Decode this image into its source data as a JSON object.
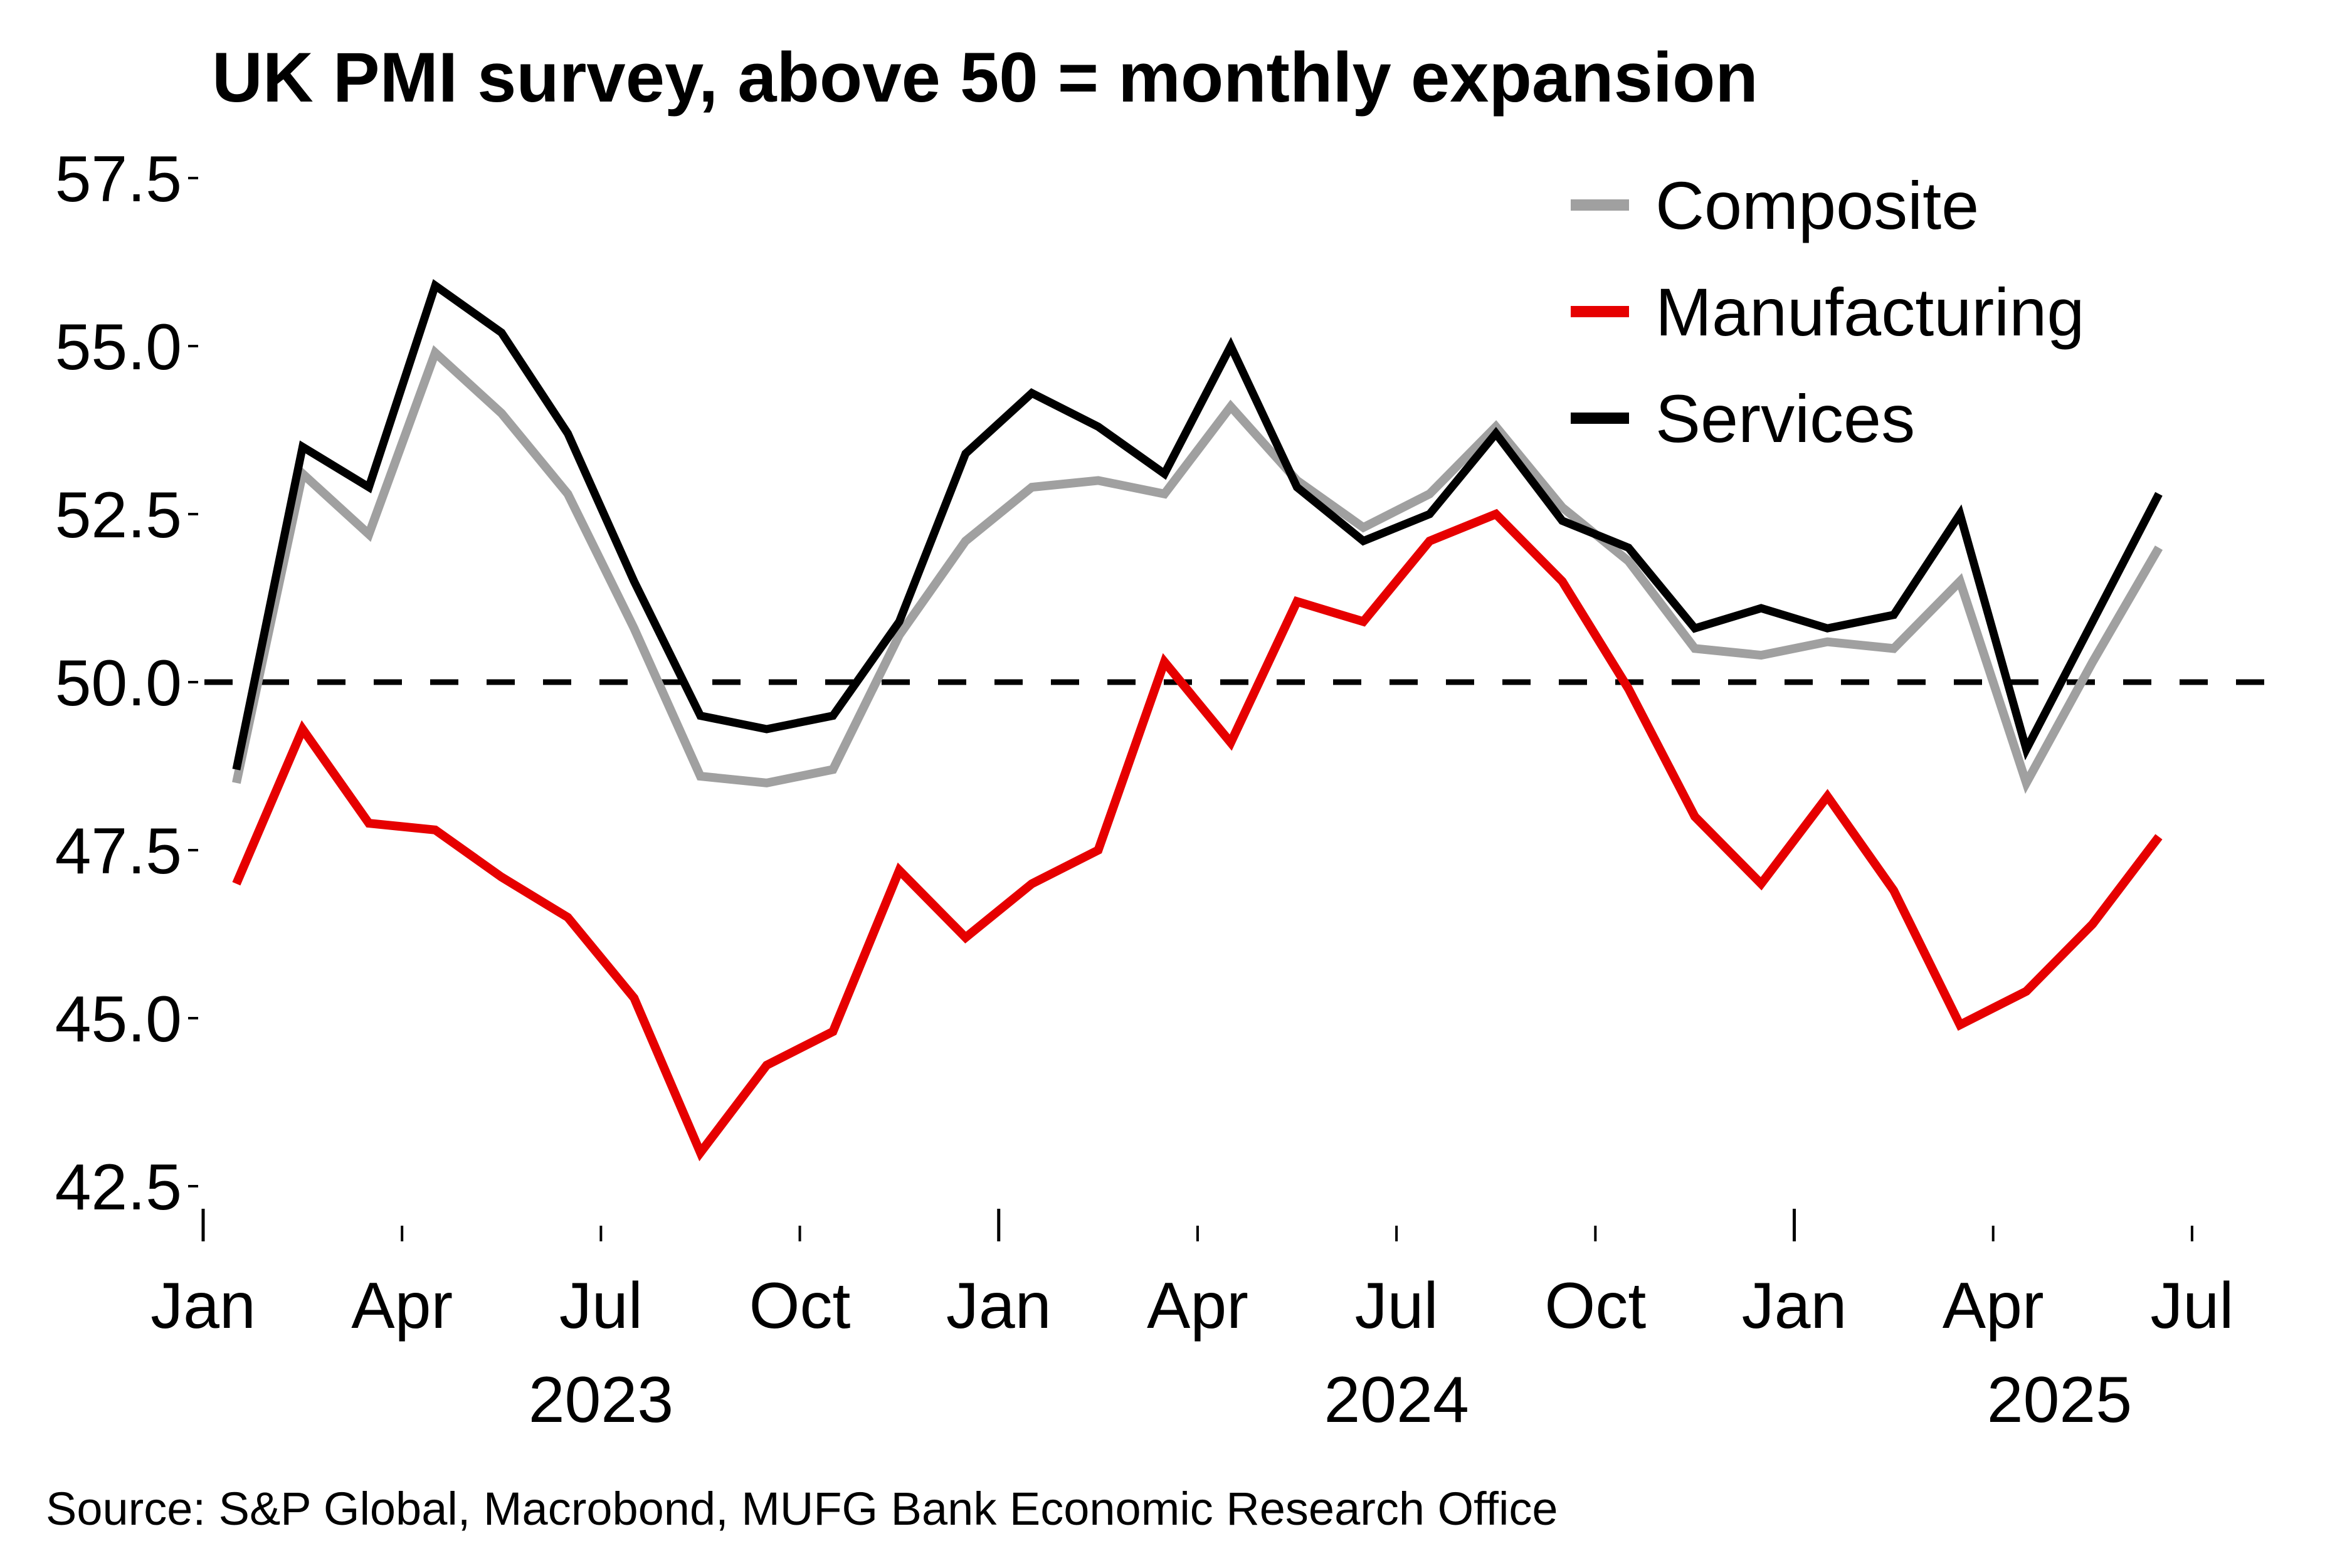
{
  "chart_data": {
    "type": "line",
    "title": "UK PMI survey, above 50 = monthly expansion",
    "xlabel": "",
    "ylabel": "",
    "ylim": [
      42.5,
      57.5
    ],
    "yticks": [
      "57.5",
      "55.0",
      "52.5",
      "50.0",
      "47.5",
      "45.0",
      "42.5"
    ],
    "ytick_values": [
      57.5,
      55.0,
      52.5,
      50.0,
      47.5,
      45.0,
      42.5
    ],
    "x_start": "2023-01",
    "x_end_tick": "2025-07",
    "x": [
      "2023-01",
      "2023-02",
      "2023-03",
      "2023-04",
      "2023-05",
      "2023-06",
      "2023-07",
      "2023-08",
      "2023-09",
      "2023-10",
      "2023-11",
      "2023-12",
      "2024-01",
      "2024-02",
      "2024-03",
      "2024-04",
      "2024-05",
      "2024-06",
      "2024-07",
      "2024-08",
      "2024-09",
      "2024-10",
      "2024-11",
      "2024-12",
      "2025-01",
      "2025-02",
      "2025-03",
      "2025-04",
      "2025-05",
      "2025-06"
    ],
    "xtick_labels": [
      {
        "label": "Jan",
        "month_index": 0,
        "major": true
      },
      {
        "label": "Apr",
        "month_index": 3,
        "major": false
      },
      {
        "label": "Jul",
        "month_index": 6,
        "major": false
      },
      {
        "label": "Oct",
        "month_index": 9,
        "major": false
      },
      {
        "label": "Jan",
        "month_index": 12,
        "major": true
      },
      {
        "label": "Apr",
        "month_index": 15,
        "major": false
      },
      {
        "label": "Jul",
        "month_index": 18,
        "major": false
      },
      {
        "label": "Oct",
        "month_index": 21,
        "major": false
      },
      {
        "label": "Jan",
        "month_index": 24,
        "major": true
      },
      {
        "label": "Apr",
        "month_index": 27,
        "major": false
      },
      {
        "label": "Jul",
        "month_index": 30,
        "major": false
      }
    ],
    "year_labels": [
      {
        "label": "2023",
        "month_center": 6
      },
      {
        "label": "2024",
        "month_center": 18
      },
      {
        "label": "2025",
        "month_center": 28
      }
    ],
    "reference_line": {
      "value": 50.0,
      "style": "dashed",
      "color": "#000000"
    },
    "grid": false,
    "legend": {
      "placement": "top-right"
    },
    "series": [
      {
        "name": "Composite",
        "color": "#A0A0A0",
        "values": [
          48.5,
          53.1,
          52.2,
          54.9,
          54.0,
          52.8,
          50.8,
          48.6,
          48.5,
          48.7,
          50.7,
          52.1,
          52.9,
          53.0,
          52.8,
          54.1,
          53.0,
          52.3,
          52.8,
          53.8,
          52.6,
          51.8,
          50.5,
          50.4,
          50.6,
          50.5,
          51.5,
          48.5,
          50.3,
          52.0
        ]
      },
      {
        "name": "Manufacturing",
        "color": "#E60000",
        "values": [
          47.0,
          49.3,
          47.9,
          47.8,
          47.1,
          46.5,
          45.3,
          43.0,
          44.3,
          44.8,
          47.2,
          46.2,
          47.0,
          47.5,
          50.3,
          49.1,
          51.2,
          50.9,
          52.1,
          52.5,
          51.5,
          49.9,
          48.0,
          47.0,
          48.3,
          46.9,
          44.9,
          45.4,
          46.4,
          47.7
        ]
      },
      {
        "name": "Services",
        "color": "#000000",
        "values": [
          48.7,
          53.5,
          52.9,
          55.9,
          55.2,
          53.7,
          51.5,
          49.5,
          49.3,
          49.5,
          50.9,
          53.4,
          54.3,
          53.8,
          53.1,
          55.0,
          52.9,
          52.1,
          52.5,
          53.7,
          52.4,
          52.0,
          50.8,
          51.1,
          50.8,
          51.0,
          52.5,
          49.0,
          50.9,
          52.8
        ]
      }
    ],
    "source": "Source: S&P Global, Macrobond, MUFG Bank Economic Research Office"
  }
}
